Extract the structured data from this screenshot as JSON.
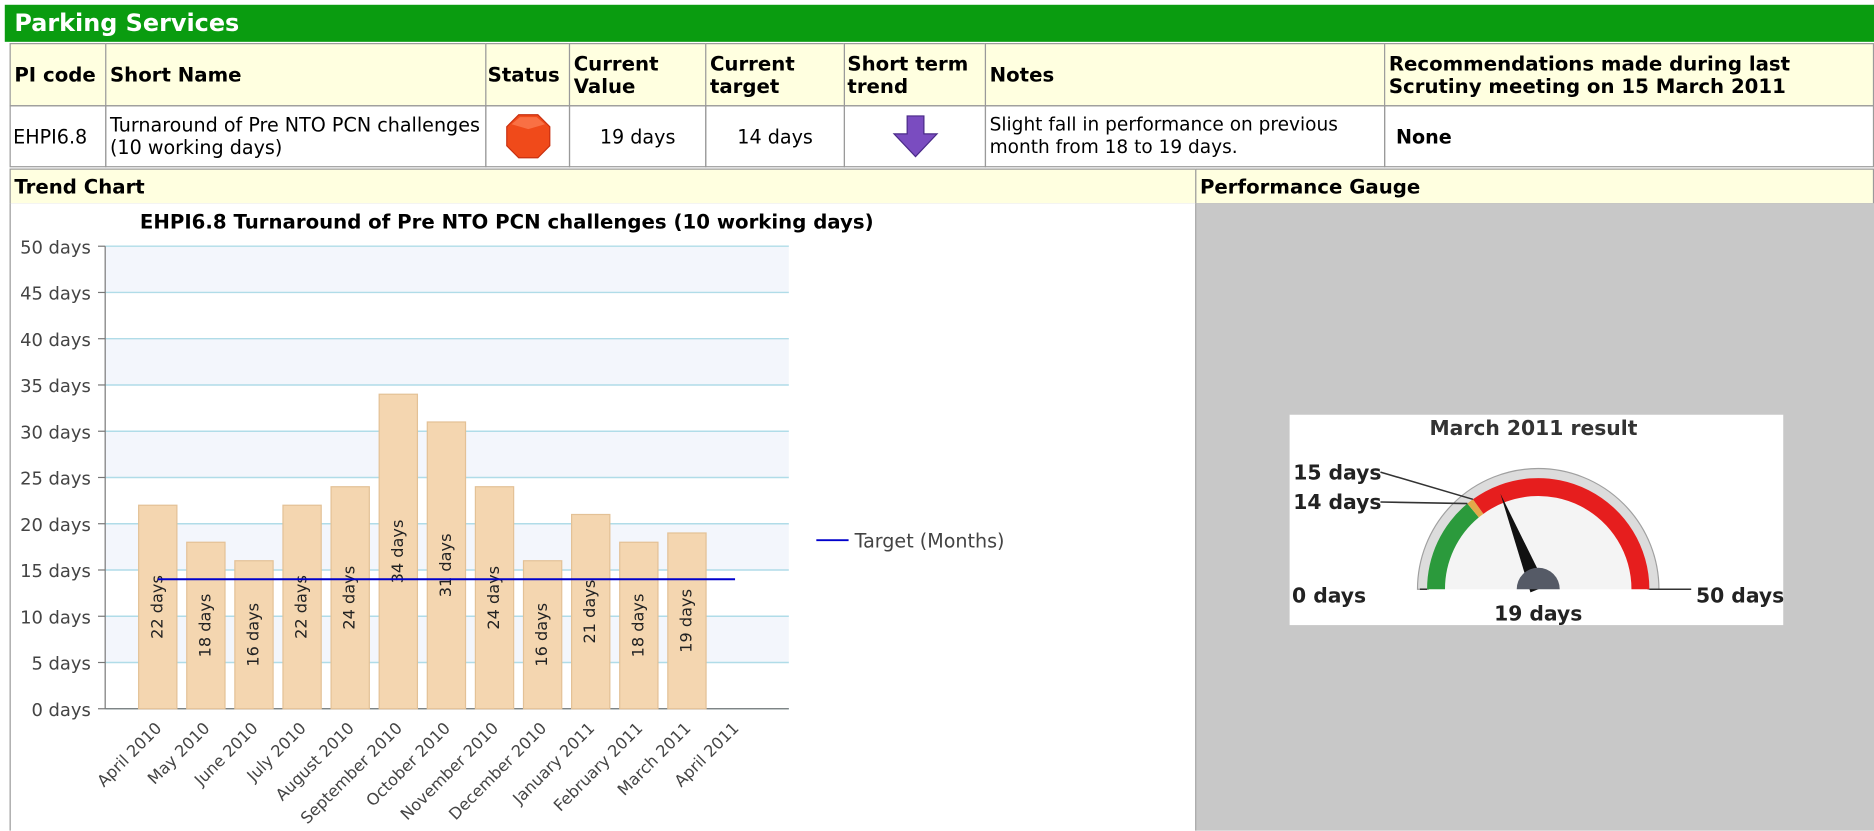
{
  "header": {
    "title": "Parking Services"
  },
  "table": {
    "columns": [
      "PI code",
      "Short Name",
      "Status",
      "Current Value",
      "Current target",
      "Short term trend",
      "Notes",
      "Recommendations made during last Scrutiny meeting on 15 March 2011"
    ],
    "rows": [
      {
        "pi_code": "EHPI6.8",
        "short_name": "Turnaround of Pre NTO PCN challenges (10 working days)",
        "current_value": "19 days",
        "current_target": "14 days",
        "notes": "Slight fall in performance on previous month from 18 to 19 days.",
        "recommendations": "None"
      }
    ]
  },
  "sections": [
    "Trend Chart",
    "Performance Gauge"
  ],
  "chart_data": [
    {
      "type": "bar",
      "title": "EHPI6.8 Turnaround of Pre NTO PCN challenges (10 working days)",
      "categories": [
        "April 2010",
        "May 2010",
        "June 2010",
        "July 2010",
        "August 2010",
        "September 2010",
        "October 2010",
        "November 2010",
        "December 2010",
        "January 2011",
        "February 2011",
        "March 2011",
        "April 2011"
      ],
      "values": [
        22,
        18,
        16,
        22,
        24,
        34,
        31,
        24,
        16,
        21,
        18,
        19,
        null
      ],
      "value_labels": [
        "22 days",
        "18 days",
        "16 days",
        "22 days",
        "24 days",
        "34 days",
        "31 days",
        "24 days",
        "16 days",
        "21 days",
        "18 days",
        "19 days",
        null
      ],
      "color": "#f4d6b0",
      "lines": [
        {
          "name": "Target (Months)",
          "color": "#0000cc",
          "values": [
            14,
            14,
            14,
            14,
            14,
            14,
            14,
            14,
            14,
            14,
            14,
            14,
            14
          ]
        }
      ],
      "ylim": [
        0,
        50
      ],
      "yticks": [
        {
          "value": 0,
          "label": "0 days"
        },
        {
          "value": 5,
          "label": "5 days"
        },
        {
          "value": 10,
          "label": "10 days"
        },
        {
          "value": 15,
          "label": "15 days"
        },
        {
          "value": 20,
          "label": "20 days"
        },
        {
          "value": 25,
          "label": "25 days"
        },
        {
          "value": 30,
          "label": "30 days"
        },
        {
          "value": 35,
          "label": "35 days"
        },
        {
          "value": 40,
          "label": "40 days"
        },
        {
          "value": 45,
          "label": "45 days"
        },
        {
          "value": 50,
          "label": "50 days"
        }
      ],
      "grid": true
    },
    {
      "type": "gauge",
      "title": "March 2011 result",
      "value": 19,
      "value_label": "19 days",
      "ylim": [
        0,
        50
      ],
      "yticks": [
        {
          "value": 0,
          "label": "0 days"
        },
        {
          "value": 14,
          "label": "14 days"
        },
        {
          "value": 15,
          "label": "15 days"
        },
        {
          "value": 50,
          "label": "50 days"
        }
      ],
      "bands": [
        {
          "from": 0,
          "to": 14,
          "color": "#2b9a3c"
        },
        {
          "from": 14,
          "to": 15,
          "color": "#e3a94a"
        },
        {
          "from": 15,
          "to": 50,
          "color": "#e61e1e"
        }
      ]
    }
  ]
}
